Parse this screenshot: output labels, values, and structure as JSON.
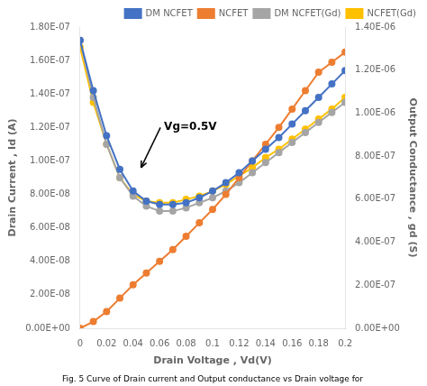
{
  "chart_data": {
    "type": "line",
    "xlabel": "Drain Voltage , Vd(V)",
    "ylabel": "Drain Current , Id (A)",
    "y2label": "Output Conductance , gd (S)",
    "caption": "Fig. 5 Curve of Drain current and Output conductance vs Drain voltage for",
    "xlim": [
      0,
      0.2
    ],
    "xticks": [
      0,
      0.02,
      0.04,
      0.06,
      0.08,
      0.1,
      0.12,
      0.14,
      0.16,
      0.18,
      0.2
    ],
    "ylim": [
      0,
      1.8e-07
    ],
    "yticks": [
      {
        "value": 0,
        "label": "0.00E+00"
      },
      {
        "value": 2e-08,
        "label": "2.00E-08"
      },
      {
        "value": 4e-08,
        "label": "4.00E-08"
      },
      {
        "value": 6e-08,
        "label": "6.00E-08"
      },
      {
        "value": 8e-08,
        "label": "8.00E-08"
      },
      {
        "value": 1e-07,
        "label": "1.00E-07"
      },
      {
        "value": 1.2e-07,
        "label": "1.20E-07"
      },
      {
        "value": 1.4e-07,
        "label": "1.40E-07"
      },
      {
        "value": 1.6e-07,
        "label": "1.60E-07"
      },
      {
        "value": 1.8e-07,
        "label": "1.80E-07"
      }
    ],
    "y2lim": [
      0,
      1.4e-06
    ],
    "y2ticks": [
      {
        "value": 0,
        "label": "0.00E+00"
      },
      {
        "value": 2e-07,
        "label": "2.00E-07"
      },
      {
        "value": 4e-07,
        "label": "4.00E-07"
      },
      {
        "value": 6e-07,
        "label": "6.00E-07"
      },
      {
        "value": 8e-07,
        "label": "8.00E-07"
      },
      {
        "value": 1e-06,
        "label": "1.00E-06"
      },
      {
        "value": 1.2e-06,
        "label": "1.20E-06"
      },
      {
        "value": 1.4e-06,
        "label": "1.40E-06"
      }
    ],
    "x": [
      0,
      0.01,
      0.02,
      0.03,
      0.04,
      0.05,
      0.06,
      0.07,
      0.08,
      0.09,
      0.1,
      0.11,
      0.12,
      0.13,
      0.14,
      0.15,
      0.16,
      0.17,
      0.18,
      0.19,
      0.2
    ],
    "series": [
      {
        "name": "DM NCFET",
        "color": "#4472C4",
        "values": [
          1.72e-07,
          1.42e-07,
          1.15e-07,
          9.5e-08,
          8.2e-08,
          7.6e-08,
          7.4e-08,
          7.4e-08,
          7.5e-08,
          7.8e-08,
          8.2e-08,
          8.7e-08,
          9.3e-08,
          1e-07,
          1.07e-07,
          1.14e-07,
          1.22e-07,
          1.3e-07,
          1.38e-07,
          1.46e-07,
          1.54e-07
        ]
      },
      {
        "name": "NCFET",
        "color": "#ED7D31",
        "values": [
          0,
          4e-09,
          1e-08,
          1.8e-08,
          2.6e-08,
          3.3e-08,
          4e-08,
          4.7e-08,
          5.5e-08,
          6.3e-08,
          7.1e-08,
          8e-08,
          9e-08,
          1e-07,
          1.1e-07,
          1.2e-07,
          1.31e-07,
          1.42e-07,
          1.53e-07,
          1.59e-07,
          1.65e-07
        ]
      },
      {
        "name": "DM NCFET(Gd)",
        "color": "#A5A5A5",
        "values": [
          1.72e-07,
          1.38e-07,
          1.1e-07,
          9e-08,
          7.9e-08,
          7.3e-08,
          7e-08,
          7e-08,
          7.2e-08,
          7.5e-08,
          7.8e-08,
          8.2e-08,
          8.7e-08,
          9.3e-08,
          9.9e-08,
          1.05e-07,
          1.11e-07,
          1.17e-07,
          1.23e-07,
          1.29e-07,
          1.35e-07
        ]
      },
      {
        "name": "NCFET(Gd)",
        "color": "#FFC000",
        "values": [
          1.68e-07,
          1.35e-07,
          1.1e-07,
          9e-08,
          8e-08,
          7.6e-08,
          7.5e-08,
          7.5e-08,
          7.7e-08,
          7.9e-08,
          8.2e-08,
          8.6e-08,
          9.1e-08,
          9.6e-08,
          1.02e-07,
          1.07e-07,
          1.13e-07,
          1.19e-07,
          1.25e-07,
          1.31e-07,
          1.38e-07
        ]
      }
    ],
    "marker": "o",
    "grid": false,
    "legend": "upper right",
    "annotations": [
      {
        "text": "Vg=0.5V",
        "x": 0.046,
        "y": 9.6e-08,
        "text_x": 0.062,
        "text_y": 1.2e-07
      }
    ]
  }
}
